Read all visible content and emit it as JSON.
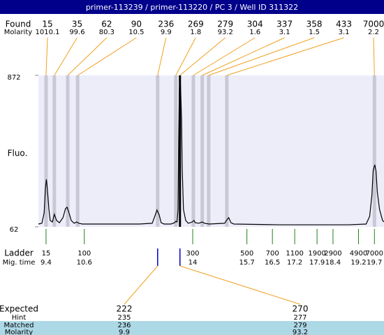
{
  "header": {
    "title": "primer-113239 / primer-113220 / PC 3 / Well ID 311322"
  },
  "chart_data": {
    "type": "line",
    "y_label": "Fluo.",
    "ylim": [
      62,
      872
    ],
    "yticks": [
      62,
      872
    ],
    "xlim": [
      9.16,
      20
    ],
    "trace": {
      "color": "#000000",
      "x": [
        9.16,
        9.27,
        9.34,
        9.38,
        9.41,
        9.44,
        9.49,
        9.53,
        9.6,
        9.66,
        9.73,
        9.82,
        9.93,
        10.01,
        10.06,
        10.12,
        10.19,
        10.28,
        10.36,
        10.43,
        10.54,
        11.24,
        12.33,
        12.73,
        12.81,
        12.88,
        12.95,
        13.01,
        13.1,
        13.32,
        13.43,
        13.47,
        13.51,
        13.54,
        13.56,
        13.58,
        13.6,
        13.62,
        13.65,
        13.67,
        13.71,
        13.78,
        13.86,
        13.99,
        14.04,
        14.08,
        14.19,
        14.3,
        14.37,
        14.52,
        15.0,
        15.07,
        15.13,
        15.2,
        15.29,
        16.71,
        18.9,
        19.44,
        19.55,
        19.62,
        19.66,
        19.71,
        19.75,
        19.79,
        19.86,
        19.95,
        19.99
      ],
      "values": [
        77,
        81,
        137,
        267,
        316,
        267,
        155,
        96,
        88,
        129,
        96,
        84,
        111,
        159,
        167,
        137,
        96,
        81,
        88,
        81,
        77,
        77,
        77,
        81,
        118,
        152,
        125,
        84,
        77,
        77,
        84,
        92,
        88,
        155,
        529,
        790,
        865,
        809,
        641,
        379,
        155,
        96,
        81,
        88,
        96,
        84,
        81,
        88,
        81,
        77,
        81,
        99,
        111,
        84,
        77,
        73,
        73,
        77,
        118,
        230,
        361,
        394,
        361,
        249,
        155,
        99,
        88
      ]
    },
    "found": {
      "label": "Found",
      "molarity_label": "Molarity",
      "sizes": [
        15,
        35,
        62,
        90,
        236,
        269,
        279,
        304,
        337,
        358,
        433,
        7000
      ],
      "molarity": [
        1010.1,
        99.6,
        80.3,
        10.5,
        9.9,
        1.8,
        93.2,
        1.6,
        3.1,
        1.5,
        3.1,
        2.2
      ],
      "times": [
        9.4,
        9.66,
        10.08,
        10.39,
        12.9,
        13.47,
        13.6,
        14.02,
        14.3,
        14.5,
        15.07,
        19.7
      ]
    },
    "ladder": {
      "label": "Ladder",
      "time_label": "Mig. time",
      "sizes": [
        15,
        100,
        300,
        500,
        700,
        1100,
        1900,
        2900,
        4900,
        7000
      ],
      "times": [
        9.4,
        10.6,
        14,
        15.7,
        16.5,
        17.2,
        17.9,
        18.4,
        19.2,
        19.7
      ]
    },
    "expected": {
      "label": "Expected",
      "hint_label": "Hint",
      "matched_label": "Matched",
      "molarity_label": "Molarity",
      "sizes": [
        222,
        270
      ],
      "hints": [
        235,
        277
      ],
      "matched": [
        236,
        279
      ],
      "molarity": [
        9.9,
        93.2
      ]
    }
  }
}
